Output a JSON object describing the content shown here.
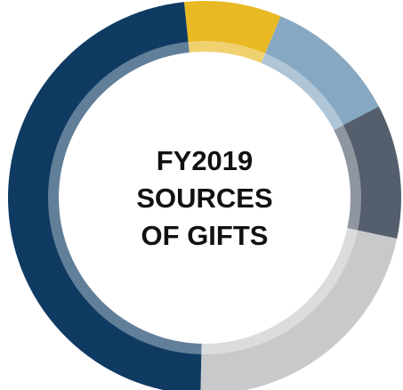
{
  "chart_data": {
    "type": "donut",
    "title": [
      "FY2019",
      "SOURCES",
      "OF GIFTS"
    ],
    "values": [
      8,
      11,
      11,
      22,
      48
    ],
    "colors": [
      "#e8b923",
      "#86a8c2",
      "#545e6d",
      "#c8c9cb",
      "#0f3b63"
    ]
  }
}
